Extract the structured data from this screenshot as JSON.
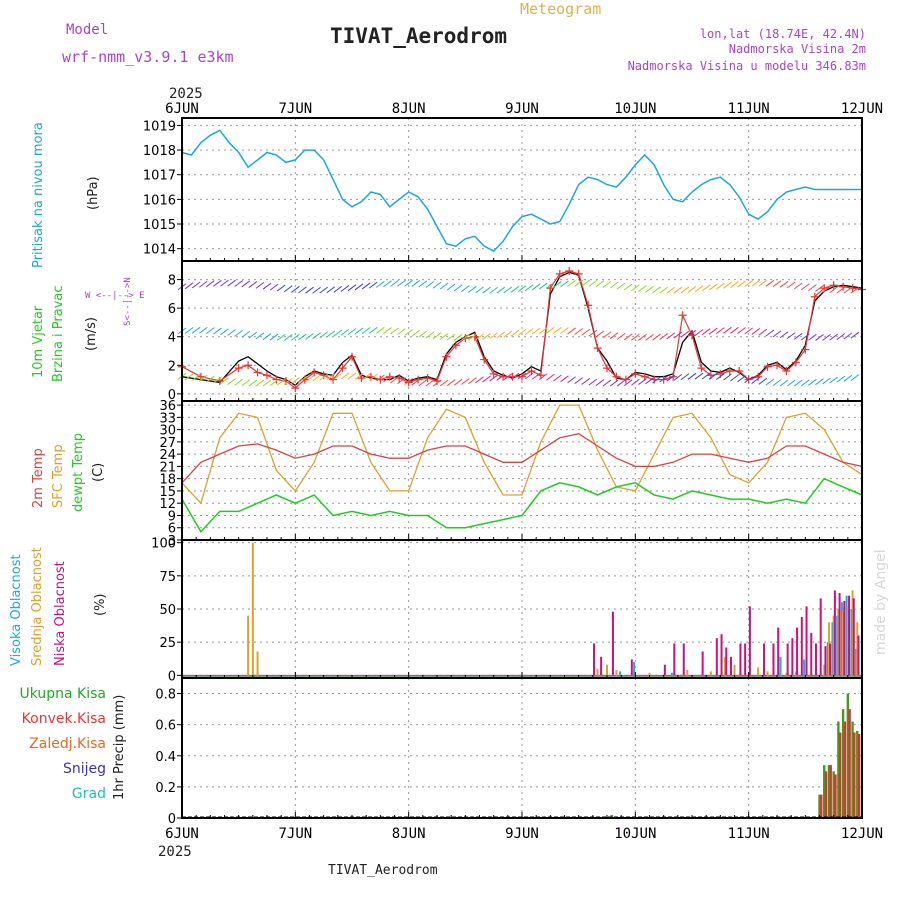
{
  "header": {
    "model_label": "Model",
    "model_value": "wrf-nmm_v3.9.1  e3km",
    "subtitle": "Meteogram",
    "title": "TIVAT_Aerodrom",
    "lonlat": "lon,lat (18.74E, 42.4N)",
    "elevation": "Nadmorska Visina 2m",
    "model_elevation": "Nadmorska Visina u modelu 346.83m",
    "year_top": "2025",
    "year_bottom": "2025",
    "footer_station": "TIVAT_Aerodrom",
    "watermark": "made by Angel"
  },
  "colors": {
    "pressure": "#1ba8e0",
    "wind_speed": "#000000",
    "gust": "#ee3333",
    "temp2m": "#e04040",
    "sfc_temp": "#e0a030",
    "dewpt": "#22cc22",
    "cloud_high": "#22a8e0",
    "cloud_mid": "#e0a030",
    "cloud_low": "#cc1177",
    "rain_total": "#449922",
    "rain_conv": "#dd3333",
    "header_purple": "#aa44cc",
    "header_orange": "#e0b050",
    "precip_labels": [
      "#22aa22",
      "#ee3333",
      "#ee6622",
      "#3333cc",
      "#22bbbb"
    ]
  },
  "chart_data": [
    {
      "type": "line",
      "panel": "pressure",
      "ylabel_left": "Pritisak na nivou mora",
      "unit": "(hPa)",
      "x_ticks": [
        "6JUN",
        "7JUN",
        "8JUN",
        "9JUN",
        "10JUN",
        "11JUN",
        "12JUN"
      ],
      "x_unit": "hours",
      "x_range": [
        0,
        144
      ],
      "ylim": [
        1013.5,
        1019.3
      ],
      "y_ticks": [
        1014,
        1015,
        1016,
        1017,
        1018,
        1019
      ],
      "series": [
        {
          "name": "Pritisak",
          "x": [
            0,
            2,
            4,
            6,
            8,
            10,
            12,
            14,
            16,
            18,
            20,
            22,
            24,
            26,
            28,
            30,
            32,
            34,
            36,
            38,
            40,
            42,
            44,
            46,
            48,
            50,
            52,
            54,
            56,
            58,
            60,
            62,
            64,
            66,
            68,
            70,
            72,
            74,
            76,
            78,
            80,
            82,
            84,
            86,
            88,
            90,
            92,
            94,
            96,
            98,
            100,
            102,
            104,
            106,
            108,
            110,
            112,
            114,
            116,
            118,
            120,
            122,
            124,
            126,
            128,
            130,
            132,
            134,
            136,
            138,
            140,
            142,
            144
          ],
          "values": [
            1017.9,
            1017.8,
            1018.3,
            1018.6,
            1018.8,
            1018.3,
            1017.9,
            1017.3,
            1017.6,
            1017.9,
            1017.8,
            1017.5,
            1017.6,
            1018.0,
            1018.0,
            1017.6,
            1016.8,
            1016.0,
            1015.7,
            1015.9,
            1016.3,
            1016.2,
            1015.7,
            1016.0,
            1016.3,
            1016.1,
            1015.6,
            1014.9,
            1014.2,
            1014.1,
            1014.4,
            1014.5,
            1014.1,
            1013.9,
            1014.3,
            1014.9,
            1015.3,
            1015.4,
            1015.2,
            1015.0,
            1015.1,
            1015.8,
            1016.6,
            1016.9,
            1016.8,
            1016.6,
            1016.5,
            1016.9,
            1017.4,
            1017.8,
            1017.4,
            1016.6,
            1016.0,
            1015.9,
            1016.3,
            1016.6,
            1016.8,
            1016.9,
            1016.6,
            1016.1,
            1015.4,
            1015.2,
            1015.5,
            1016.0,
            1016.3,
            1016.4,
            1016.5,
            1016.4,
            1016.4,
            1016.4,
            1016.4,
            1016.4,
            1016.4
          ]
        }
      ]
    },
    {
      "type": "line",
      "panel": "wind",
      "ylabel_left_1": "10m Vjetar",
      "ylabel_left_2": "Brzina i Pravac",
      "unit": "(m/s)",
      "compass_s": "S<--|-->N",
      "compass_w": "W <--|--> E",
      "ylim": [
        -0.5,
        9.3
      ],
      "y_ticks": [
        0,
        2,
        4,
        6,
        8
      ],
      "series": [
        {
          "name": "Brzina",
          "x": [
            0,
            4,
            8,
            12,
            14,
            16,
            18,
            20,
            22,
            24,
            26,
            28,
            30,
            32,
            34,
            36,
            38,
            40,
            42,
            44,
            46,
            48,
            50,
            52,
            54,
            56,
            58,
            60,
            62,
            64,
            66,
            68,
            70,
            72,
            74,
            76,
            78,
            80,
            82,
            84,
            86,
            88,
            90,
            92,
            94,
            96,
            98,
            100,
            102,
            104,
            106,
            108,
            110,
            112,
            114,
            116,
            118,
            120,
            122,
            124,
            126,
            128,
            130,
            132,
            134,
            136,
            138,
            140,
            142,
            144
          ],
          "values": [
            1.2,
            1.0,
            0.8,
            2.3,
            2.6,
            2.1,
            1.6,
            1.2,
            1.0,
            0.6,
            1.2,
            1.6,
            1.4,
            1.3,
            2.2,
            2.7,
            1.3,
            1.1,
            1.0,
            1.0,
            1.3,
            0.9,
            1.1,
            1.2,
            1.0,
            2.8,
            3.6,
            4.0,
            4.3,
            2.6,
            1.6,
            1.3,
            1.1,
            1.4,
            1.9,
            1.6,
            7.0,
            8.2,
            8.5,
            8.3,
            6.0,
            3.2,
            2.3,
            1.1,
            1.0,
            1.5,
            1.4,
            1.2,
            1.2,
            1.4,
            3.6,
            4.4,
            2.2,
            1.6,
            1.5,
            1.8,
            1.5,
            1.0,
            1.3,
            2.0,
            2.2,
            1.7,
            2.3,
            3.4,
            6.5,
            7.2,
            7.5,
            7.6,
            7.5,
            7.4
          ]
        },
        {
          "name": "Udar",
          "x": [
            0,
            4,
            8,
            12,
            14,
            16,
            18,
            20,
            22,
            24,
            26,
            28,
            30,
            32,
            34,
            36,
            38,
            40,
            42,
            44,
            46,
            48,
            50,
            52,
            54,
            56,
            58,
            60,
            62,
            64,
            66,
            68,
            70,
            72,
            74,
            76,
            78,
            80,
            82,
            84,
            86,
            88,
            90,
            92,
            94,
            96,
            98,
            100,
            102,
            104,
            106,
            108,
            110,
            112,
            114,
            116,
            118,
            120,
            122,
            124,
            126,
            128,
            130,
            132,
            134,
            136,
            138,
            140,
            142,
            144
          ],
          "values": [
            1.9,
            1.2,
            0.9,
            1.8,
            2.0,
            1.5,
            1.3,
            1.0,
            0.9,
            0.4,
            1.0,
            1.5,
            1.3,
            1.0,
            1.8,
            2.6,
            1.1,
            1.2,
            1.0,
            1.2,
            1.1,
            0.8,
            1.0,
            1.1,
            0.9,
            2.6,
            3.4,
            3.9,
            4.0,
            2.4,
            1.4,
            1.2,
            1.2,
            1.2,
            1.6,
            1.3,
            7.4,
            8.4,
            8.6,
            8.4,
            6.2,
            3.2,
            1.8,
            1.2,
            1.0,
            1.4,
            1.2,
            1.0,
            1.0,
            1.2,
            5.5,
            4.1,
            1.8,
            1.3,
            1.4,
            1.6,
            1.6,
            1.0,
            1.2,
            1.9,
            2.0,
            1.6,
            2.2,
            3.1,
            6.8,
            7.4,
            7.6,
            7.5,
            7.4,
            7.3
          ]
        }
      ]
    },
    {
      "type": "line",
      "panel": "temperature",
      "ylabel_left_1": "2m Temp",
      "ylabel_left_2": "SFC Temp",
      "ylabel_left_3": "dewpt Temp",
      "unit": "(C)",
      "ylim": [
        3,
        37
      ],
      "y_ticks": [
        3,
        6,
        9,
        12,
        15,
        18,
        21,
        24,
        27,
        30,
        33,
        36
      ],
      "series": [
        {
          "name": "2m Temp",
          "x": [
            0,
            4,
            8,
            12,
            16,
            20,
            24,
            28,
            32,
            36,
            40,
            44,
            48,
            52,
            56,
            60,
            64,
            68,
            72,
            76,
            80,
            84,
            88,
            92,
            96,
            100,
            104,
            108,
            112,
            116,
            120,
            124,
            128,
            132,
            136,
            140,
            144
          ],
          "values": [
            17,
            22,
            24,
            26,
            26.5,
            25,
            23,
            24,
            26,
            26,
            24,
            23,
            23,
            25,
            26,
            26,
            24,
            22,
            22,
            25,
            28,
            29,
            26,
            23,
            21,
            21,
            22,
            24,
            24,
            23,
            22,
            23,
            26,
            26,
            24,
            22,
            21
          ]
        },
        {
          "name": "SFC Temp",
          "x": [
            0,
            4,
            8,
            12,
            16,
            20,
            24,
            28,
            32,
            36,
            40,
            44,
            48,
            52,
            56,
            60,
            64,
            68,
            72,
            76,
            80,
            84,
            88,
            92,
            96,
            100,
            104,
            108,
            112,
            116,
            120,
            124,
            128,
            132,
            136,
            140,
            144
          ],
          "values": [
            17,
            12,
            28,
            34,
            33,
            20,
            15,
            22,
            34,
            34,
            22,
            15,
            15,
            28,
            35,
            33,
            22,
            14,
            14,
            27,
            36,
            36,
            25,
            16,
            15,
            24,
            33,
            34,
            28,
            19,
            17,
            22,
            33,
            34,
            30,
            22,
            19
          ]
        },
        {
          "name": "dewpt Temp",
          "x": [
            0,
            4,
            8,
            12,
            16,
            20,
            24,
            28,
            32,
            36,
            40,
            44,
            48,
            52,
            56,
            60,
            64,
            68,
            72,
            76,
            80,
            84,
            88,
            92,
            96,
            100,
            104,
            108,
            112,
            116,
            120,
            124,
            128,
            132,
            136,
            140,
            144
          ],
          "values": [
            13,
            5,
            10,
            10,
            12,
            14,
            12,
            14,
            9,
            10,
            9,
            10,
            9,
            9,
            6,
            6,
            7,
            8,
            9,
            15,
            17,
            16,
            14,
            16,
            17,
            14,
            13,
            15,
            14,
            13,
            13,
            12,
            13,
            12,
            18,
            16,
            14
          ]
        }
      ]
    },
    {
      "type": "bar",
      "panel": "clouds",
      "ylabel_left_1": "Visoka Oblacnost",
      "ylabel_left_2": "Srednja Oblacnost",
      "ylabel_left_3": "Niska Oblacnost",
      "unit": "(%)",
      "ylim": [
        -2,
        102
      ],
      "y_ticks": [
        0,
        25,
        50,
        75,
        100
      ],
      "series": [
        {
          "name": "Visoka",
          "x": [
            89,
            93,
            96,
            104,
            127,
            132,
            137,
            138,
            139,
            140,
            141,
            142,
            143
          ],
          "values": [
            2,
            3,
            10,
            2,
            14,
            12,
            25,
            40,
            45,
            55,
            60,
            50,
            20
          ]
        },
        {
          "name": "Srednja",
          "x": [
            14,
            15,
            16,
            88,
            90,
            92,
            99,
            107,
            112,
            115,
            117,
            122,
            124,
            128,
            130,
            136,
            137,
            138,
            139,
            140,
            141,
            142,
            143
          ],
          "values": [
            45,
            100,
            18,
            5,
            8,
            4,
            2,
            4,
            3,
            14,
            8,
            6,
            3,
            2,
            3,
            8,
            40,
            45,
            50,
            48,
            52,
            64,
            40
          ]
        },
        {
          "name": "Niska",
          "x": [
            87,
            88.5,
            91,
            95,
            102,
            104,
            106,
            110,
            113,
            114,
            115,
            116,
            118,
            119,
            120,
            123,
            125,
            126,
            128,
            129,
            130,
            131,
            132,
            133,
            134,
            135,
            136,
            137,
            138,
            139,
            140,
            141,
            142,
            143
          ],
          "values": [
            24,
            14,
            48,
            12,
            8,
            24,
            24,
            18,
            28,
            31,
            21,
            14,
            24,
            24,
            52,
            24,
            24,
            36,
            24,
            28,
            36,
            44,
            52,
            32,
            24,
            58,
            22,
            24,
            64,
            62,
            56,
            60,
            58,
            30
          ]
        }
      ]
    },
    {
      "type": "bar",
      "panel": "precip",
      "legend": [
        "Ukupna Kisa",
        "Konvek.Kisa",
        "Zaledj.Kisa",
        "Snijeg",
        "Grad"
      ],
      "ylabel": "1hr Precip (mm)",
      "ylim": [
        0,
        0.9
      ],
      "y_ticks": [
        0,
        0.2,
        0.4,
        0.6,
        0.8
      ],
      "series": [
        {
          "name": "Ukupna Kisa",
          "x": [
            91,
            135,
            136,
            137,
            138,
            139,
            140,
            141,
            142,
            143
          ],
          "values": [
            0.02,
            0.15,
            0.34,
            0.34,
            0.3,
            0.62,
            0.7,
            0.8,
            0.62,
            0.56
          ]
        },
        {
          "name": "Konvek.Kisa",
          "x": [
            135,
            136,
            137,
            138,
            139,
            140,
            141,
            142,
            143
          ],
          "values": [
            0.15,
            0.3,
            0.34,
            0.28,
            0.55,
            0.62,
            0.7,
            0.55,
            0.54
          ]
        }
      ]
    }
  ]
}
